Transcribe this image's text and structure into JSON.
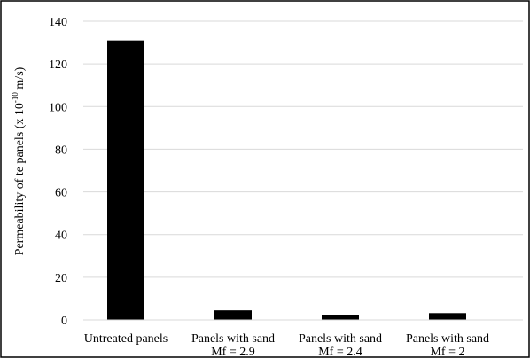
{
  "chart_data": {
    "type": "bar",
    "title": "",
    "xlabel": "",
    "ylabel": {
      "prefix": "Permeability of te panels (x 10",
      "exponent": "-10",
      "suffix": " m/s)"
    },
    "ylim": [
      0,
      140
    ],
    "yticks": [
      0,
      20,
      40,
      60,
      80,
      100,
      120,
      140
    ],
    "grid": true,
    "legend": "none",
    "categories": [
      [
        "Untreated panels"
      ],
      [
        "Panels with sand",
        "Mf = 2.9"
      ],
      [
        "Panels with sand",
        "Mf = 2.4"
      ],
      [
        "Panels with sand",
        "Mf = 2"
      ]
    ],
    "values": [
      131,
      4.5,
      2.2,
      3.2
    ],
    "bar_color": "#000000",
    "grid_color": "#d9d9d9"
  }
}
